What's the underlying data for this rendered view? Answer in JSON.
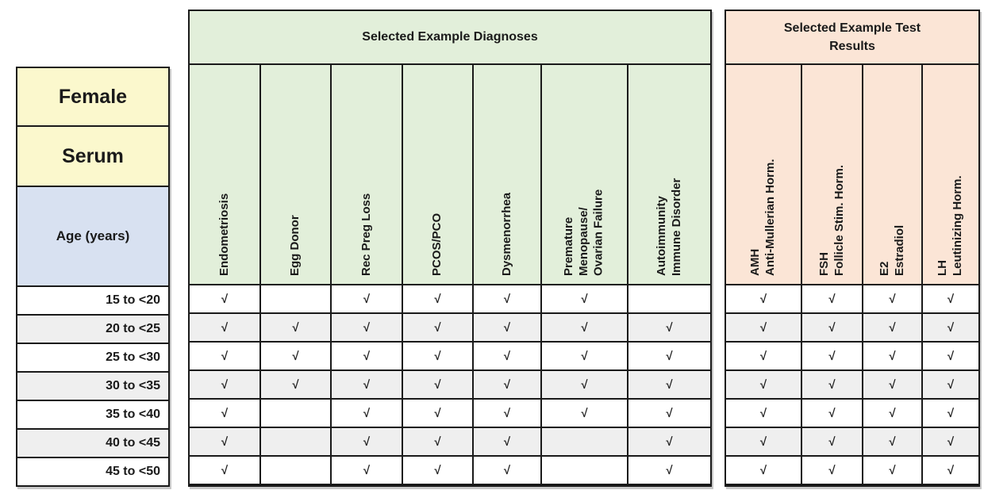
{
  "chart_data": {
    "type": "table",
    "corner": {
      "sex": "Female",
      "specimen": "Serum",
      "row_axis": "Age (years)"
    },
    "groups": [
      {
        "title": "Selected Example Diagnoses",
        "columns": [
          "Endometriosis",
          "Egg Donor",
          "Rec Preg Loss",
          "PCOS/PCO",
          "Dysmenorrhea",
          "Premature\nMenopause/\nOvarian Failure",
          "Autoimmunity\nImmune Disorder"
        ]
      },
      {
        "title": "Selected Example Test\nResults",
        "columns": [
          "AMH\nAnti-Mullerian Horm.",
          "FSH\nFollicle Stim. Horm.",
          "E2\nEstradiol",
          "LH\nLeutinizing Horm."
        ]
      }
    ],
    "check_symbol": "√",
    "rows": [
      {
        "age": "15 to <20",
        "diagnoses": [
          "√",
          "",
          "√",
          "√",
          "√",
          "√",
          ""
        ],
        "tests": [
          "√",
          "√",
          "√",
          "√"
        ]
      },
      {
        "age": "20 to <25",
        "diagnoses": [
          "√",
          "√",
          "√",
          "√",
          "√",
          "√",
          "√"
        ],
        "tests": [
          "√",
          "√",
          "√",
          "√"
        ]
      },
      {
        "age": "25 to <30",
        "diagnoses": [
          "√",
          "√",
          "√",
          "√",
          "√",
          "√",
          "√"
        ],
        "tests": [
          "√",
          "√",
          "√",
          "√"
        ]
      },
      {
        "age": "30 to <35",
        "diagnoses": [
          "√",
          "√",
          "√",
          "√",
          "√",
          "√",
          "√"
        ],
        "tests": [
          "√",
          "√",
          "√",
          "√"
        ]
      },
      {
        "age": "35 to <40",
        "diagnoses": [
          "√",
          "",
          "√",
          "√",
          "√",
          "√",
          "√"
        ],
        "tests": [
          "√",
          "√",
          "√",
          "√"
        ]
      },
      {
        "age": "40 to <45",
        "diagnoses": [
          "√",
          "",
          "√",
          "√",
          "√",
          "",
          "√"
        ],
        "tests": [
          "√",
          "√",
          "√",
          "√"
        ]
      },
      {
        "age": "45 to <50",
        "diagnoses": [
          "√",
          "",
          "√",
          "√",
          "√",
          "",
          "√"
        ],
        "tests": [
          "√",
          "√",
          "√",
          "√"
        ]
      }
    ],
    "layout_hints": {
      "colors": {
        "sex_specimen_bg": "#fbf8cd",
        "age_axis_bg": "#d8e1f1",
        "diagnoses_bg": "#e2efda",
        "tests_bg": "#fbe5d6",
        "row_stripe": "#efefef",
        "grid_line": "#1a1a1a"
      },
      "striped_rows": [
        "20 to <25",
        "30 to <35",
        "40 to <45"
      ]
    }
  }
}
